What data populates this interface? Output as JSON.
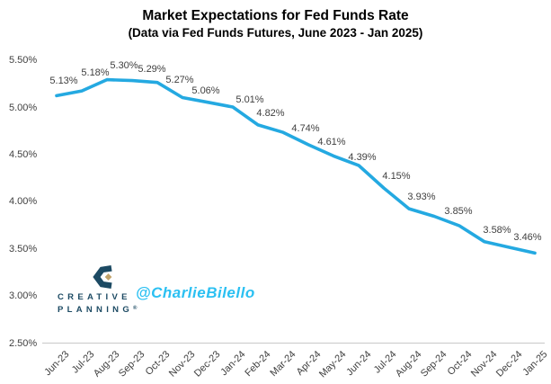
{
  "header": {
    "title": "Market Expectations for Fed Funds Rate",
    "subtitle": "(Data via Fed Funds Futures, June 2023 - Jan 2025)"
  },
  "watermark": {
    "brand_line1": "CREATIVE",
    "brand_line2": "PLANNING",
    "brand_trademark": "®",
    "handle": "@CharlieBilello",
    "brand_color": "#1c4a63",
    "diamond_color": "#c2a36b",
    "handle_color": "#2bc0f2"
  },
  "chart_data": {
    "type": "line",
    "categories": [
      "Jun-23",
      "Jul-23",
      "Aug-23",
      "Sep-23",
      "Oct-23",
      "Nov-23",
      "Dec-23",
      "Jan-24",
      "Feb-24",
      "Mar-24",
      "Apr-24",
      "May-24",
      "Jun-24",
      "Jul-24",
      "Aug-24",
      "Sep-24",
      "Oct-24",
      "Nov-24",
      "Dec-24",
      "Jan-25"
    ],
    "values": [
      5.13,
      5.18,
      5.3,
      5.29,
      5.27,
      5.11,
      5.06,
      5.01,
      4.82,
      4.74,
      4.61,
      4.49,
      4.39,
      4.15,
      3.93,
      3.85,
      3.75,
      3.58,
      3.52,
      3.46
    ],
    "data_labels": [
      "5.13%",
      "5.18%",
      "5.30%",
      "5.29%",
      "5.27%",
      "",
      "5.06%",
      "5.01%",
      "4.82%",
      "4.74%",
      "4.61%",
      "",
      "4.39%",
      "4.15%",
      "3.93%",
      "3.85%",
      "",
      "3.58%",
      "",
      "3.46%"
    ],
    "y_ticks": [
      "5.50%",
      "5.00%",
      "4.50%",
      "4.00%",
      "3.50%",
      "3.00%",
      "2.50%"
    ],
    "y_min": 2.5,
    "y_max": 5.5,
    "grid": false,
    "legend": false,
    "line_color": "#24a9e1",
    "label_color": "#3f3f3f",
    "axis_color": "#c8c8c8",
    "xlabel": "",
    "ylabel": ""
  }
}
